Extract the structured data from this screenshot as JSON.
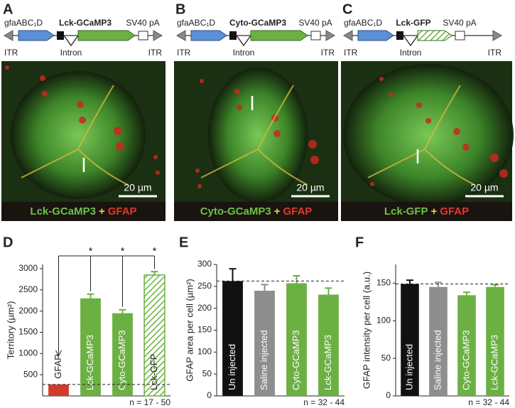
{
  "panels": [
    {
      "label": "A",
      "promoter": "gfaABC₁D",
      "gene": "Lck-GCaMP3",
      "polyA": "SV40 pA",
      "itr_left": "ITR",
      "intron": "Intron",
      "itr_right": "ITR",
      "scale_bar": "20 µm",
      "caption": {
        "indicator": "Lck-GCaMP3",
        "plus": "+",
        "marker": "GFAP"
      }
    },
    {
      "label": "B",
      "promoter": "gfaABC₁D",
      "gene": "Cyto-GCaMP3",
      "polyA": "SV40 pA",
      "itr_left": "ITR",
      "intron": "Intron",
      "itr_right": "ITR",
      "scale_bar": "20 µm",
      "caption": {
        "indicator": "Cyto-GCaMP3",
        "plus": "+",
        "marker": "GFAP"
      }
    },
    {
      "label": "C",
      "promoter": "gfaABC₁D",
      "gene": "Lck-GFP",
      "polyA": "SV40 pA",
      "itr_left": "ITR",
      "intron": "Intron",
      "itr_right": "ITR",
      "scale_bar": "20 µm",
      "caption": {
        "indicator": "Lck-GFP",
        "plus": "+",
        "marker": "GFAP"
      }
    }
  ],
  "chart_data": [
    {
      "type": "bar",
      "panel": "D",
      "ylabel": "Territory (µm²)",
      "categories": [
        "GFAP",
        "Lck-GCaMP3",
        "Cyto-GCaMP3",
        "Lck-GFP"
      ],
      "values": [
        270,
        2300,
        1950,
        2850
      ],
      "errors": [
        0,
        100,
        80,
        80
      ],
      "colors": [
        "#d23a2a",
        "#6cb043",
        "#6cb043",
        "#6cb043"
      ],
      "hatch": [
        false,
        false,
        false,
        true
      ],
      "ylim": [
        0,
        3100
      ],
      "yticks": [
        500,
        1000,
        1500,
        2000,
        2500,
        3000
      ],
      "reference_line": 270,
      "annotations": [
        "*",
        "*",
        "*"
      ],
      "note": "n = 17 - 50"
    },
    {
      "type": "bar",
      "panel": "E",
      "ylabel": "GFAP area per cell (µm²)",
      "categories": [
        "Un injected",
        "Saline injected",
        "Cyto-GCaMP3",
        "Lck-GCaMP3"
      ],
      "values": [
        262,
        240,
        257,
        231
      ],
      "errors": [
        28,
        14,
        17,
        15
      ],
      "colors": [
        "#111111",
        "#8e8e8e",
        "#6cb043",
        "#6cb043"
      ],
      "hatch": [
        false,
        false,
        false,
        false
      ],
      "ylim": [
        0,
        300
      ],
      "yticks": [
        0,
        50,
        100,
        150,
        200,
        250,
        300
      ],
      "reference_line": 262,
      "note": "n = 32 - 44"
    },
    {
      "type": "bar",
      "panel": "F",
      "ylabel": "GFAP intensity per cell (a.u.)",
      "categories": [
        "Un injected",
        "Saline injected",
        "Cyto-GCaMP3",
        "Lck-GCaMP3"
      ],
      "values": [
        149,
        145,
        134,
        145
      ],
      "errors": [
        5,
        6,
        4,
        3
      ],
      "colors": [
        "#111111",
        "#8e8e8e",
        "#6cb043",
        "#6cb043"
      ],
      "hatch": [
        false,
        false,
        false,
        false
      ],
      "ylim": [
        0,
        175
      ],
      "yticks": [
        0,
        50,
        100,
        150
      ],
      "reference_line": 149,
      "note": "n = 32 - 44"
    }
  ]
}
